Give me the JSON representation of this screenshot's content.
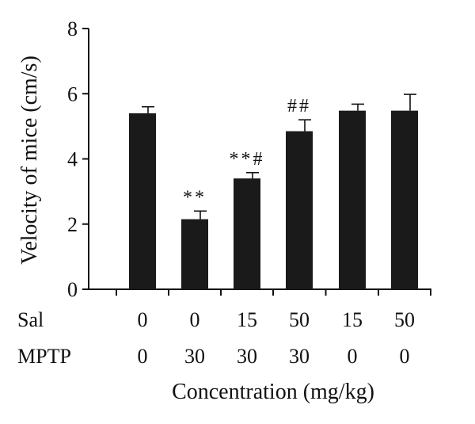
{
  "chart_data": {
    "type": "bar",
    "title": "",
    "ylabel": "Velocity of mice (cm/s)",
    "xlabel": "Concentration (mg/kg)",
    "ylim": [
      0,
      8
    ],
    "yticks": [
      0,
      2,
      4,
      6,
      8
    ],
    "grid": false,
    "bar_color": "#1a1a1a",
    "group_rows": [
      {
        "label": "Sal",
        "values": [
          "0",
          "0",
          "15",
          "50",
          "15",
          "50"
        ]
      },
      {
        "label": "MPTP",
        "values": [
          "0",
          "30",
          "30",
          "30",
          "0",
          "0"
        ]
      }
    ],
    "values": [
      5.4,
      2.15,
      3.4,
      4.85,
      5.48,
      5.48
    ],
    "errors": [
      0.2,
      0.25,
      0.18,
      0.35,
      0.2,
      0.5
    ],
    "annotations": [
      "",
      "**",
      "**#",
      "##",
      "",
      ""
    ]
  }
}
